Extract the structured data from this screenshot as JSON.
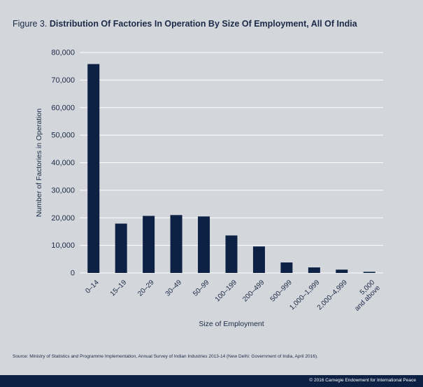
{
  "figure_label": "Figure 3.",
  "figure_title": "Distribution Of Factories In Operation By Size Of Employment, All Of India",
  "source_note": "Source: Ministry of Statistics and Programme Implementation, Annual Survey of Indian Industries 2013-14 (New Delhi: Government of India, April 2016).",
  "copyright": "© 2016 Carnegie Endowment for International Peace",
  "colors": {
    "background": "#d3d6da",
    "bar": "#0d2145",
    "grid": "#ffffff",
    "text": "#1b2a48"
  },
  "chart_data": {
    "type": "bar",
    "title": "Distribution Of Factories In Operation By Size Of Employment, All Of India",
    "xlabel": "Size of Employment",
    "ylabel": "Number of Factories in Operation",
    "ylim": [
      0,
      80000
    ],
    "yticks": [
      0,
      10000,
      20000,
      30000,
      40000,
      50000,
      60000,
      70000,
      80000
    ],
    "ytick_labels": [
      "0",
      "10,000",
      "20,000",
      "30,000",
      "40,000",
      "50,000",
      "60,000",
      "70,000",
      "80,000"
    ],
    "grid": true,
    "categories": [
      "0–14",
      "15–19",
      "20–29",
      "30–49",
      "50–99",
      "100–199",
      "200–499",
      "500–999",
      "1,000–1,999",
      "2,000–4,999",
      "5,000 and above"
    ],
    "category_lines": [
      [
        "0–14"
      ],
      [
        "15–19"
      ],
      [
        "20–29"
      ],
      [
        "30–49"
      ],
      [
        "50–99"
      ],
      [
        "100–199"
      ],
      [
        "200–499"
      ],
      [
        "500–999"
      ],
      [
        "1,000–1,999"
      ],
      [
        "2,000–4,999"
      ],
      [
        "5,000",
        "and above"
      ]
    ],
    "values": [
      75800,
      17900,
      20700,
      21000,
      20500,
      13600,
      9600,
      3800,
      2000,
      1200,
      400
    ]
  }
}
